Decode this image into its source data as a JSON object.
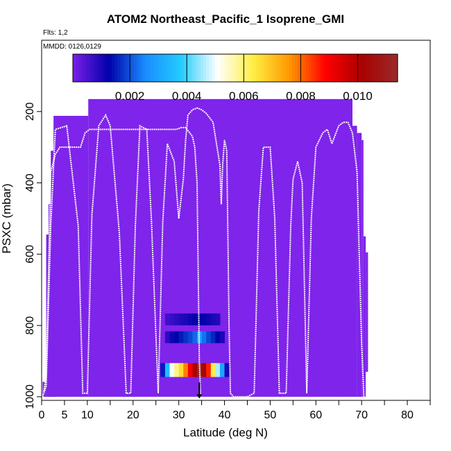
{
  "chart_data": {
    "type": "heatmap",
    "title": "ATOM2 Northeast_Pacific_1 Isoprene_GMI",
    "flights_note": "Flts: 1,2",
    "date_note": "MMDD: 0126,0129",
    "xlabel": "Latitude (deg N)",
    "ylabel": "PSXC (mbar)",
    "xlim": [
      0,
      85
    ],
    "ylim": [
      1010,
      0
    ],
    "x_ticks": [
      0,
      5,
      10,
      20,
      30,
      40,
      50,
      60,
      70,
      80
    ],
    "y_ticks": [
      200,
      400,
      600,
      800,
      1000
    ],
    "colorbar": {
      "range": [
        0,
        0.0114
      ],
      "ticks": [
        0.002,
        0.004,
        0.006,
        0.008,
        0.01
      ],
      "tick_labels": [
        "0.002",
        "0.004",
        "0.006",
        "0.008",
        "0.010"
      ],
      "colors": [
        "#7a1fe9",
        "#0000aa",
        "#1a8cff",
        "#22ccff",
        "#ffffff",
        "#ffee44",
        "#ff9900",
        "#ff0000",
        "#aa0000",
        "#9a2a2a"
      ]
    },
    "background_value": 0,
    "background_color": "#7f24ea",
    "regions": [
      {
        "x0": 0.2,
        "x1": 1.0,
        "p0": 958,
        "p1": 1000
      },
      {
        "x0": 1.0,
        "x1": 2.0,
        "p0": 545,
        "p1": 1000
      },
      {
        "x0": 1.5,
        "x1": 2.6,
        "p0": 460,
        "p1": 1000
      },
      {
        "x0": 2.0,
        "x1": 3.0,
        "p0": 310,
        "p1": 1000
      },
      {
        "x0": 2.6,
        "x1": 10.2,
        "p0": 212,
        "p1": 1000
      },
      {
        "x0": 10.2,
        "x1": 68.0,
        "p0": 165,
        "p1": 1000
      },
      {
        "x0": 68.0,
        "x1": 69.0,
        "p0": 240,
        "p1": 1000
      },
      {
        "x0": 69.0,
        "x1": 70.0,
        "p0": 260,
        "p1": 1000
      },
      {
        "x0": 70.0,
        "x1": 70.4,
        "p0": 280,
        "p1": 1000
      },
      {
        "x0": 70.4,
        "x1": 70.9,
        "p0": 550,
        "p1": 1000
      },
      {
        "x0": 70.9,
        "x1": 71.4,
        "p0": 595,
        "p1": 930
      }
    ],
    "highlight_cells": [
      {
        "lat": 27.5,
        "p": 783,
        "v": 0.0006
      },
      {
        "lat": 28.5,
        "p": 783,
        "v": 0.0007
      },
      {
        "lat": 29.5,
        "p": 783,
        "v": 0.0008
      },
      {
        "lat": 30.5,
        "p": 783,
        "v": 0.0009
      },
      {
        "lat": 31.5,
        "p": 783,
        "v": 0.001
      },
      {
        "lat": 32.5,
        "p": 783,
        "v": 0.0011
      },
      {
        "lat": 33.5,
        "p": 783,
        "v": 0.0012
      },
      {
        "lat": 34.5,
        "p": 783,
        "v": 0.0013
      },
      {
        "lat": 35.5,
        "p": 783,
        "v": 0.0012
      },
      {
        "lat": 36.5,
        "p": 783,
        "v": 0.0011
      },
      {
        "lat": 37.5,
        "p": 783,
        "v": 0.001
      },
      {
        "lat": 38.5,
        "p": 783,
        "v": 0.0009
      },
      {
        "lat": 27.5,
        "p": 833,
        "v": 0.0008
      },
      {
        "lat": 28.5,
        "p": 833,
        "v": 0.0011
      },
      {
        "lat": 29.5,
        "p": 833,
        "v": 0.0013
      },
      {
        "lat": 30.5,
        "p": 833,
        "v": 0.0015
      },
      {
        "lat": 31.5,
        "p": 833,
        "v": 0.0017
      },
      {
        "lat": 32.5,
        "p": 833,
        "v": 0.0019
      },
      {
        "lat": 33.5,
        "p": 833,
        "v": 0.0022
      },
      {
        "lat": 34.5,
        "p": 833,
        "v": 0.003
      },
      {
        "lat": 35.5,
        "p": 833,
        "v": 0.0023
      },
      {
        "lat": 36.5,
        "p": 833,
        "v": 0.0019
      },
      {
        "lat": 37.5,
        "p": 833,
        "v": 0.0016
      },
      {
        "lat": 38.5,
        "p": 833,
        "v": 0.0013
      },
      {
        "lat": 39.5,
        "p": 833,
        "v": 0.001
      },
      {
        "lat": 26.5,
        "p": 925,
        "v": 0.0015
      },
      {
        "lat": 27.5,
        "p": 925,
        "v": 0.0035
      },
      {
        "lat": 28.5,
        "p": 925,
        "v": 0.005
      },
      {
        "lat": 29.5,
        "p": 925,
        "v": 0.0059
      },
      {
        "lat": 30.5,
        "p": 925,
        "v": 0.0066
      },
      {
        "lat": 31.5,
        "p": 925,
        "v": 0.0078
      },
      {
        "lat": 32.5,
        "p": 925,
        "v": 0.009
      },
      {
        "lat": 33.5,
        "p": 925,
        "v": 0.0101
      },
      {
        "lat": 34.5,
        "p": 925,
        "v": 0.0112
      },
      {
        "lat": 35.5,
        "p": 925,
        "v": 0.0103
      },
      {
        "lat": 36.5,
        "p": 925,
        "v": 0.0086
      },
      {
        "lat": 37.5,
        "p": 925,
        "v": 0.0063
      },
      {
        "lat": 38.5,
        "p": 925,
        "v": 0.0046
      },
      {
        "lat": 39.5,
        "p": 925,
        "v": 0.003
      },
      {
        "lat": 40.5,
        "p": 925,
        "v": 0.001
      }
    ],
    "marker": {
      "lat": 34.5,
      "p_top": 960,
      "p_bottom": 1005
    },
    "flight_tracks": [
      [
        [
          0.5,
          985
        ],
        [
          1.0,
          940
        ],
        [
          2.0,
          370
        ],
        [
          3.0,
          320
        ],
        [
          4.0,
          300
        ],
        [
          8.5,
          300
        ],
        [
          9.5,
          260
        ],
        [
          10.5,
          250
        ],
        [
          20.0,
          250
        ],
        [
          29.5,
          250
        ],
        [
          30.5,
          245
        ],
        [
          31.5,
          245
        ],
        [
          33.0,
          270
        ],
        [
          33.5,
          300
        ],
        [
          34.0,
          400
        ],
        [
          34.5,
          900
        ],
        [
          34.8,
          1000
        ]
      ],
      [
        [
          0.2,
          1000
        ],
        [
          1.0,
          970
        ],
        [
          2.0,
          520
        ],
        [
          3.0,
          250
        ],
        [
          5.5,
          240
        ],
        [
          8.0,
          520
        ],
        [
          9.0,
          990
        ],
        [
          10.0,
          990
        ],
        [
          11.0,
          490
        ],
        [
          12.5,
          240
        ],
        [
          14.0,
          210
        ],
        [
          15.0,
          240
        ],
        [
          17.0,
          540
        ],
        [
          18.5,
          990
        ],
        [
          19.5,
          990
        ],
        [
          20.5,
          520
        ],
        [
          21.5,
          240
        ],
        [
          23.0,
          250
        ],
        [
          24.0,
          500
        ],
        [
          25.5,
          990
        ],
        [
          26.5,
          510
        ],
        [
          27.5,
          290
        ],
        [
          29.0,
          340
        ],
        [
          30.0,
          500
        ],
        [
          31.0,
          390
        ],
        [
          31.5,
          280
        ],
        [
          32.0,
          210
        ],
        [
          33.0,
          195
        ],
        [
          34.0,
          190
        ],
        [
          35.0,
          195
        ],
        [
          36.0,
          205
        ],
        [
          37.5,
          230
        ],
        [
          38.5,
          310
        ],
        [
          39.0,
          350
        ],
        [
          39.3,
          460
        ],
        [
          39.6,
          350
        ],
        [
          40.0,
          280
        ],
        [
          40.5,
          310
        ],
        [
          41.0,
          800
        ],
        [
          41.3,
          990
        ],
        [
          42.0,
          1000
        ],
        [
          45.0,
          1000
        ],
        [
          46.5,
          990
        ],
        [
          47.5,
          480
        ],
        [
          48.5,
          300
        ],
        [
          50.0,
          300
        ],
        [
          51.0,
          500
        ],
        [
          52.0,
          990
        ],
        [
          53.5,
          990
        ],
        [
          54.5,
          520
        ],
        [
          55.0,
          390
        ],
        [
          56.0,
          340
        ],
        [
          57.0,
          400
        ],
        [
          58.0,
          990
        ],
        [
          59.0,
          500
        ],
        [
          60.0,
          300
        ],
        [
          61.5,
          260
        ],
        [
          62.5,
          250
        ],
        [
          63.5,
          290
        ],
        [
          65.0,
          240
        ],
        [
          66.0,
          230
        ],
        [
          67.0,
          230
        ],
        [
          68.0,
          260
        ],
        [
          69.0,
          370
        ],
        [
          70.0,
          850
        ],
        [
          70.5,
          1000
        ]
      ]
    ]
  }
}
